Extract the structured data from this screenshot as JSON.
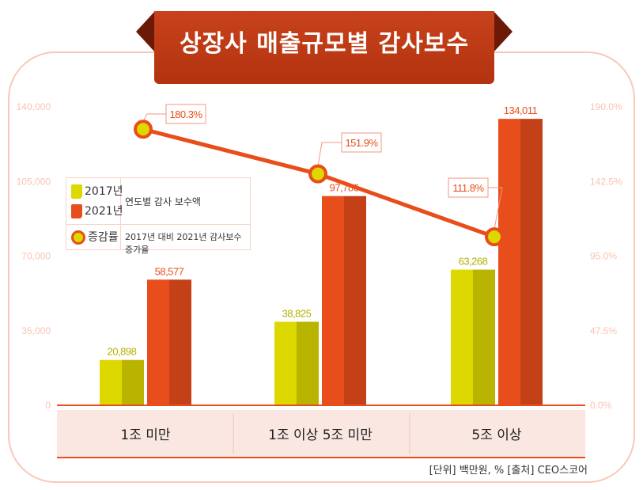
{
  "title": "상장사 매출규모별 감사보수",
  "legend": {
    "items": [
      {
        "label": "2017년",
        "color": "#dcd800"
      },
      {
        "label": "2021년",
        "color": "#e84e1b"
      }
    ],
    "bars_desc": "연도별 감사 보수액",
    "line_label": "증감률",
    "line_desc": "2017년 대비 2021년 감사보수 증가율"
  },
  "source": "[단위] 백만원, %   [출처] CEO스코어",
  "chart_data": {
    "type": "bar+line",
    "categories": [
      "1조 미만",
      "1조 이상 5조 미만",
      "5조 이상"
    ],
    "series": [
      {
        "name": "2017년",
        "values": [
          20898,
          38825,
          63268
        ],
        "labels": [
          "20,898",
          "38,825",
          "63,268"
        ],
        "color": "#dcd800",
        "axis": "left"
      },
      {
        "name": "2021년",
        "values": [
          58577,
          97786,
          134011
        ],
        "labels": [
          "58,577",
          "97,786",
          "134,011"
        ],
        "color": "#e84e1b",
        "axis": "left"
      },
      {
        "name": "증감률",
        "type": "line",
        "values": [
          180.3,
          151.9,
          111.8
        ],
        "labels": [
          "180.3%",
          "151.9%",
          "111.8%"
        ],
        "color": "#e84e1b",
        "axis": "right"
      }
    ],
    "ylim": [
      0,
      140000
    ],
    "y2lim": [
      0,
      190
    ],
    "yticks": [
      "0",
      "35,000",
      "70,000",
      "105,000",
      "140,000"
    ],
    "y2ticks": [
      "0.0%",
      "47.5%",
      "95.0%",
      "142.5%",
      "190.0%"
    ],
    "grid": false
  }
}
